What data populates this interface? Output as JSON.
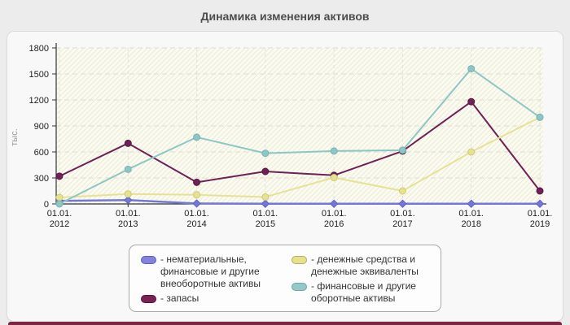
{
  "title": "Динамика изменения активов",
  "chart_data": {
    "type": "line",
    "title": "Динамика изменения активов",
    "xlabel": "",
    "ylabel": "тыс.",
    "ylim": [
      0,
      1800
    ],
    "yticks": [
      0,
      300,
      600,
      900,
      1200,
      1500,
      1800
    ],
    "grid": true,
    "legend_position": "bottom",
    "categories": [
      "01.01.2012",
      "01.01.2013",
      "01.01.2014",
      "01.01.2015",
      "01.01.2016",
      "01.01.2017",
      "01.01.2018",
      "01.01.2019"
    ],
    "series": [
      {
        "name": "нематериальные, финансовые и другие внеоборотные активы",
        "values": [
          35,
          45,
          5,
          2,
          2,
          2,
          2,
          2
        ],
        "color": "#7577d8",
        "border": "#5f61c4",
        "marker": "diamond"
      },
      {
        "name": "запасы",
        "values": [
          320,
          700,
          250,
          375,
          330,
          610,
          1180,
          150
        ],
        "color": "#6e2156",
        "border": "#58183f",
        "marker": "circle"
      },
      {
        "name": "денежные средства и денежные эквиваленты",
        "values": [
          75,
          115,
          105,
          80,
          305,
          150,
          600,
          1000
        ],
        "color": "#e7e292",
        "border": "#cfc874",
        "marker": "circle"
      },
      {
        "name": "финансовые и другие оборотные активы",
        "values": [
          0,
          400,
          770,
          585,
          610,
          620,
          1560,
          1000
        ],
        "color": "#8ec6c6",
        "border": "#77b4b4",
        "marker": "circle"
      }
    ]
  },
  "legend": {
    "items": [
      {
        "label": "- нематериальные, финансовые и другие внеоборотные активы",
        "color": "#8283dc",
        "border": "#5c5ec2"
      },
      {
        "label": "- запасы",
        "color": "#7c2156",
        "border": "#541239"
      },
      {
        "label": "- денежные средства и денежные эквиваленты",
        "color": "#e5e18f",
        "border": "#b6b05c"
      },
      {
        "label": "- финансовые и другие оборотные активы",
        "color": "#97c7c7",
        "border": "#69a9a9"
      }
    ]
  },
  "colors": {
    "page_background": "#ececec",
    "card_background": "#f8f8f8",
    "plot_background": "#fbfbf0",
    "grid_line": "#dcdcd2",
    "axis_line": "#333333",
    "title_text": "#4d4d4d",
    "axis_text": "#222222",
    "ylabel_text": "#999999",
    "footer_bar": "#7e2444"
  }
}
